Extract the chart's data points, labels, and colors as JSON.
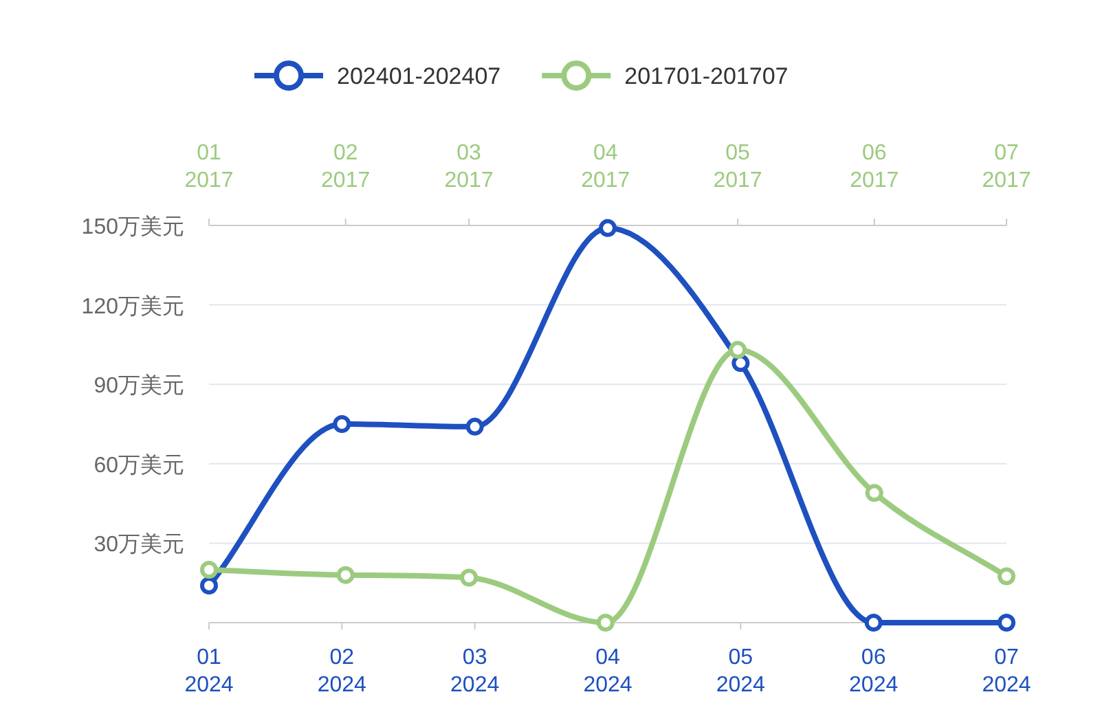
{
  "chart_data": {
    "type": "line",
    "categories": [
      "01\n2024",
      "02\n2024",
      "03\n2024",
      "04\n2024",
      "05\n2024",
      "06\n2024",
      "07\n2024"
    ],
    "x2lim": [
      "2017-01",
      "2017-07"
    ],
    "x2ticks": [
      {
        "value": "2017-01",
        "label": "01\n2017"
      },
      {
        "value": "2017-02",
        "label": "02\n2017"
      },
      {
        "value": "2017-03",
        "label": "03\n2017"
      },
      {
        "value": "2017-04",
        "label": "04\n2017"
      },
      {
        "value": "2017-05",
        "label": "05\n2017"
      },
      {
        "value": "2017-06",
        "label": "06\n2017"
      },
      {
        "value": "2017-07",
        "label": "07\n2017"
      }
    ],
    "series": [
      {
        "name": "202401-202407",
        "color": "#1e50c0",
        "values": [
          14,
          75,
          74,
          149,
          98,
          0,
          0
        ]
      },
      {
        "name": "201701-201707",
        "color": "#9ccb7f",
        "axis": "x2",
        "x": [
          "2017-01",
          "2017-02",
          "2017-03",
          "2017-04",
          "2017-05",
          "2017-06",
          "2017-07"
        ],
        "values": [
          20,
          18,
          17,
          0,
          103,
          49,
          17.5
        ]
      }
    ],
    "ylim": [
      0,
      150
    ],
    "yticks": [
      {
        "value": 30,
        "label": "30万美元"
      },
      {
        "value": 60,
        "label": "60万美元"
      },
      {
        "value": 90,
        "label": "90万美元"
      },
      {
        "value": 120,
        "label": "120万美元"
      },
      {
        "value": 150,
        "label": "150万美元"
      }
    ],
    "grid": "y",
    "legend": "top",
    "marker": "circle",
    "line_style": "solid"
  }
}
